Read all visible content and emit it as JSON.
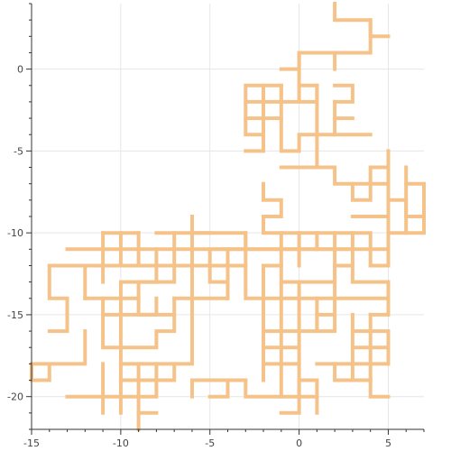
{
  "chart_data": {
    "type": "line",
    "title": "",
    "xlabel": "",
    "ylabel": "",
    "xlim": [
      -15,
      7
    ],
    "ylim": [
      -22,
      4
    ],
    "grid": true,
    "x_ticks": [
      -15,
      -10,
      -5,
      0,
      5
    ],
    "y_ticks": [
      0,
      -5,
      -10,
      -15,
      -20
    ],
    "x_tick_labels": [
      "-15",
      "-10",
      "-5",
      "0",
      "5"
    ],
    "y_tick_labels": [
      "0",
      "-5",
      "-10",
      "-15",
      "-20"
    ],
    "series": [
      {
        "line_color": "#f5c38a",
        "segments": [
          [
            [
              2,
              4
            ],
            [
              2,
              3
            ],
            [
              3,
              3
            ],
            [
              4,
              3
            ],
            [
              4,
              2
            ],
            [
              5,
              2
            ]
          ],
          [
            [
              4,
              3
            ],
            [
              4,
              1
            ],
            [
              1,
              1
            ],
            [
              0,
              1
            ],
            [
              0,
              0
            ],
            [
              -1,
              0
            ]
          ],
          [
            [
              2,
              1
            ],
            [
              2,
              0
            ]
          ],
          [
            [
              0,
              1
            ],
            [
              0,
              -2
            ],
            [
              -1,
              -2
            ],
            [
              -1,
              -1
            ],
            [
              -3,
              -1
            ],
            [
              -3,
              -4
            ],
            [
              -2,
              -4
            ],
            [
              -2,
              -5
            ],
            [
              -3,
              -5
            ]
          ],
          [
            [
              -1,
              -1
            ],
            [
              -1,
              -5
            ],
            [
              0,
              -5
            ],
            [
              0,
              -4
            ],
            [
              1,
              -4
            ],
            [
              1,
              -6
            ],
            [
              -1,
              -6
            ]
          ],
          [
            [
              -3,
              -2
            ],
            [
              -1,
              -2
            ]
          ],
          [
            [
              -3,
              -3
            ],
            [
              -1,
              -3
            ]
          ],
          [
            [
              -2,
              -1
            ],
            [
              -2,
              -4
            ]
          ],
          [
            [
              0,
              -1
            ],
            [
              1,
              -1
            ],
            [
              1,
              -2
            ],
            [
              0,
              -2
            ]
          ],
          [
            [
              1,
              -1
            ],
            [
              1,
              -4
            ],
            [
              4,
              -4
            ]
          ],
          [
            [
              2,
              -2
            ],
            [
              2,
              -4
            ]
          ],
          [
            [
              2,
              -1
            ],
            [
              3,
              -1
            ],
            [
              3,
              -2
            ],
            [
              2,
              -2
            ]
          ],
          [
            [
              2,
              -3
            ],
            [
              3,
              -3
            ]
          ],
          [
            [
              1,
              -6
            ],
            [
              2,
              -6
            ],
            [
              2,
              -7
            ],
            [
              5,
              -7
            ],
            [
              5,
              -5
            ]
          ],
          [
            [
              3,
              -7
            ],
            [
              3,
              -8
            ],
            [
              4,
              -8
            ],
            [
              4,
              -6
            ],
            [
              5,
              -6
            ]
          ],
          [
            [
              5,
              -7
            ],
            [
              5,
              -12
            ]
          ],
          [
            [
              5,
              -8
            ],
            [
              6,
              -8
            ],
            [
              6,
              -10
            ],
            [
              5,
              -10
            ]
          ],
          [
            [
              6,
              -6
            ],
            [
              6,
              -9
            ],
            [
              7,
              -9
            ]
          ],
          [
            [
              6,
              -7
            ],
            [
              7,
              -7
            ],
            [
              7,
              -10
            ],
            [
              6,
              -10
            ]
          ],
          [
            [
              3,
              -9
            ],
            [
              5,
              -9
            ]
          ],
          [
            [
              -2,
              -7
            ],
            [
              -2,
              -8
            ],
            [
              -1,
              -8
            ],
            [
              -1,
              -9
            ],
            [
              -2,
              -9
            ],
            [
              -2,
              -10
            ],
            [
              4,
              -10
            ],
            [
              4,
              -12
            ]
          ],
          [
            [
              5,
              -11
            ],
            [
              -5,
              -11
            ],
            [
              -5,
              -12
            ]
          ],
          [
            [
              0,
              -10
            ],
            [
              0,
              -12
            ]
          ],
          [
            [
              1,
              -10
            ],
            [
              1,
              -11
            ]
          ],
          [
            [
              2,
              -10
            ],
            [
              2,
              -14
            ]
          ],
          [
            [
              3,
              -10
            ],
            [
              3,
              -13
            ]
          ],
          [
            [
              -1,
              -10
            ],
            [
              -1,
              -12
            ]
          ],
          [
            [
              -3,
              -10
            ],
            [
              -3,
              -14
            ],
            [
              -2,
              -14
            ],
            [
              -2,
              -12
            ],
            [
              -1,
              -12
            ],
            [
              -1,
              -13
            ],
            [
              2,
              -13
            ],
            [
              2,
              -12
            ],
            [
              3,
              -12
            ]
          ],
          [
            [
              -3,
              -11
            ],
            [
              -3,
              -10
            ],
            [
              -6,
              -10
            ],
            [
              -6,
              -9
            ]
          ],
          [
            [
              -6,
              -10
            ],
            [
              -6,
              -12
            ],
            [
              -5,
              -12
            ],
            [
              -5,
              -13
            ],
            [
              -4,
              -13
            ],
            [
              -4,
              -14
            ],
            [
              -7,
              -14
            ]
          ],
          [
            [
              -3,
              -12
            ],
            [
              -11,
              -12
            ]
          ],
          [
            [
              -4,
              -11
            ],
            [
              -4,
              -14
            ]
          ],
          [
            [
              -6,
              -12
            ],
            [
              -6,
              -14
            ]
          ],
          [
            [
              -8,
              -11
            ],
            [
              -8,
              -13
            ],
            [
              -9,
              -13
            ],
            [
              -9,
              -14
            ],
            [
              -12,
              -14
            ]
          ],
          [
            [
              -7,
              -11
            ],
            [
              -7,
              -13
            ],
            [
              -10,
              -13
            ],
            [
              -10,
              -14
            ]
          ],
          [
            [
              -7,
              -10
            ],
            [
              -7,
              -11
            ]
          ],
          [
            [
              -10,
              -10
            ],
            [
              -10,
              -12
            ]
          ],
          [
            [
              -11,
              -10
            ],
            [
              -11,
              -13
            ]
          ],
          [
            [
              -9,
              -10
            ],
            [
              -9,
              -12
            ]
          ],
          [
            [
              -13,
              -11
            ],
            [
              3,
              -11
            ]
          ],
          [
            [
              -11,
              -10
            ],
            [
              -9,
              -10
            ]
          ],
          [
            [
              -8,
              -10
            ],
            [
              -5,
              -10
            ]
          ],
          [
            [
              -14,
              -12
            ],
            [
              -14,
              -14
            ],
            [
              -13,
              -14
            ],
            [
              -13,
              -16
            ],
            [
              -14,
              -16
            ]
          ],
          [
            [
              -14,
              -12
            ],
            [
              -11,
              -12
            ]
          ],
          [
            [
              -12,
              -12
            ],
            [
              -12,
              -14
            ]
          ],
          [
            [
              -11,
              -14
            ],
            [
              -11,
              -17
            ],
            [
              -8,
              -17
            ],
            [
              -8,
              -16
            ],
            [
              -7,
              -16
            ],
            [
              -7,
              -14
            ]
          ],
          [
            [
              -10,
              -14
            ],
            [
              -10,
              -18
            ],
            [
              -6,
              -18
            ],
            [
              -6,
              -14
            ]
          ],
          [
            [
              -9,
              -14
            ],
            [
              -9,
              -15
            ],
            [
              -8,
              -15
            ],
            [
              -8,
              -14
            ]
          ],
          [
            [
              -11,
              -15
            ],
            [
              -7,
              -15
            ]
          ],
          [
            [
              -12,
              -16
            ],
            [
              -12,
              -18
            ],
            [
              -15,
              -18
            ],
            [
              -15,
              -19
            ],
            [
              -14,
              -19
            ],
            [
              -14,
              -18
            ]
          ],
          [
            [
              -11,
              -18
            ],
            [
              -11,
              -21
            ]
          ],
          [
            [
              -10,
              -18
            ],
            [
              -10,
              -21
            ]
          ],
          [
            [
              -9,
              -18
            ],
            [
              -9,
              -22
            ]
          ],
          [
            [
              -9,
              -21
            ],
            [
              -8,
              -21
            ]
          ],
          [
            [
              -13,
              -20
            ],
            [
              -8,
              -20
            ],
            [
              -8,
              -18
            ]
          ],
          [
            [
              -10,
              -19
            ],
            [
              -7,
              -19
            ],
            [
              -7,
              -18
            ]
          ],
          [
            [
              -6,
              -19
            ],
            [
              -4,
              -19
            ],
            [
              -4,
              -20
            ],
            [
              -5,
              -20
            ]
          ],
          [
            [
              -6,
              -20
            ],
            [
              -6,
              -19
            ]
          ],
          [
            [
              -3,
              -19
            ],
            [
              -4,
              -19
            ]
          ],
          [
            [
              -2,
              -14
            ],
            [
              5,
              -14
            ]
          ],
          [
            [
              -2,
              -14
            ],
            [
              -2,
              -19
            ]
          ],
          [
            [
              -1,
              -13
            ],
            [
              -1,
              -20
            ],
            [
              0,
              -20
            ],
            [
              0,
              -19
            ],
            [
              1,
              -19
            ],
            [
              1,
              -21
            ]
          ],
          [
            [
              0,
              -13
            ],
            [
              0,
              -21
            ],
            [
              -1,
              -21
            ]
          ],
          [
            [
              1,
              -14
            ],
            [
              1,
              -16
            ],
            [
              -2,
              -16
            ]
          ],
          [
            [
              -2,
              -17
            ],
            [
              0,
              -17
            ]
          ],
          [
            [
              -2,
              -18
            ],
            [
              0,
              -18
            ]
          ],
          [
            [
              -3,
              -19
            ],
            [
              -3,
              -20
            ],
            [
              -1,
              -20
            ]
          ],
          [
            [
              0,
              -20
            ],
            [
              1,
              -20
            ]
          ],
          [
            [
              2,
              -14
            ],
            [
              2,
              -15
            ],
            [
              1,
              -15
            ]
          ],
          [
            [
              1,
              -15
            ],
            [
              1,
              -16
            ],
            [
              2,
              -16
            ],
            [
              2,
              -15
            ]
          ],
          [
            [
              1,
              -18
            ],
            [
              5,
              -18
            ]
          ],
          [
            [
              2,
              -18
            ],
            [
              2,
              -19
            ],
            [
              4,
              -19
            ]
          ],
          [
            [
              3,
              -15
            ],
            [
              3,
              -19
            ]
          ],
          [
            [
              4,
              -15
            ],
            [
              4,
              -20
            ],
            [
              5,
              -20
            ]
          ],
          [
            [
              3,
              -16
            ],
            [
              5,
              -16
            ],
            [
              5,
              -18
            ]
          ],
          [
            [
              3,
              -17
            ],
            [
              5,
              -17
            ]
          ],
          [
            [
              4,
              -15
            ],
            [
              5,
              -15
            ]
          ],
          [
            [
              5,
              -14
            ],
            [
              5,
              -15
            ]
          ],
          [
            [
              5,
              -13
            ],
            [
              5,
              -14
            ]
          ],
          [
            [
              4,
              -12
            ],
            [
              5,
              -12
            ]
          ],
          [
            [
              3,
              -13
            ],
            [
              5,
              -13
            ]
          ]
        ]
      }
    ]
  }
}
